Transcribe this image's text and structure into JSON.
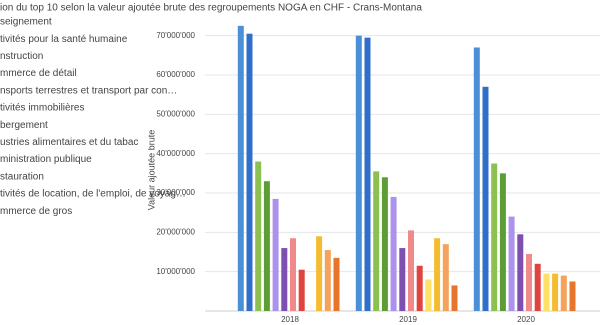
{
  "chart_data": {
    "type": "bar",
    "title": "ion du top 10 selon la valeur ajoutée brute des regroupements NOGA en CHF - Crans-Montana",
    "y_label": "Valeur ajoutée brute",
    "categories": [
      "2018",
      "2019",
      "2020"
    ],
    "series": [
      {
        "name": "seignement",
        "color": "#4a90d9",
        "values": [
          72500000,
          70000000,
          67000000
        ]
      },
      {
        "name": "tivités pour la santé humaine",
        "color": "#2f6fc9",
        "values": [
          70500000,
          69500000,
          57000000
        ]
      },
      {
        "name": "nstruction",
        "color": "#8cc152",
        "values": [
          38000000,
          35500000,
          37500000
        ]
      },
      {
        "name": "mmerce de détail",
        "color": "#5c9e35",
        "values": [
          33000000,
          34000000,
          35000000
        ]
      },
      {
        "name": "nsports terrestres et transport par con…",
        "color": "#ac92ec",
        "values": [
          28500000,
          29000000,
          24000000
        ]
      },
      {
        "name": "tivités immobilières",
        "color": "#7d4fb0",
        "values": [
          16000000,
          16000000,
          19500000
        ]
      },
      {
        "name": "bergement",
        "color": "#f08a8a",
        "values": [
          18500000,
          20500000,
          14500000
        ]
      },
      {
        "name": "ustries alimentaires et du tabac",
        "color": "#e0443e",
        "values": [
          10500000,
          11500000,
          12000000
        ]
      },
      {
        "name": "ministration publique",
        "color": "#ffe066",
        "values": [
          null,
          8000000,
          9500000
        ]
      },
      {
        "name": "stauration",
        "color": "#f6bb30",
        "values": [
          19000000,
          18500000,
          9500000
        ]
      },
      {
        "name": "tivités de location, de l'emploi, de voyag…",
        "color": "#f5a35c",
        "values": [
          15500000,
          17000000,
          9000000
        ]
      },
      {
        "name": "mmerce de gros",
        "color": "#e8752c",
        "values": [
          13500000,
          6500000,
          7500000
        ]
      }
    ],
    "ylim": [
      0,
      75000000
    ],
    "yticks": [
      {
        "value": 10000000,
        "label": "10'000'000"
      },
      {
        "value": 20000000,
        "label": "20'000'000"
      },
      {
        "value": 30000000,
        "label": "30'000'000"
      },
      {
        "value": 40000000,
        "label": "40'000'000"
      },
      {
        "value": 50000000,
        "label": "50'000'000"
      },
      {
        "value": 60000000,
        "label": "60'000'000"
      },
      {
        "value": 70000000,
        "label": "70'000'000"
      }
    ],
    "grid": true
  }
}
